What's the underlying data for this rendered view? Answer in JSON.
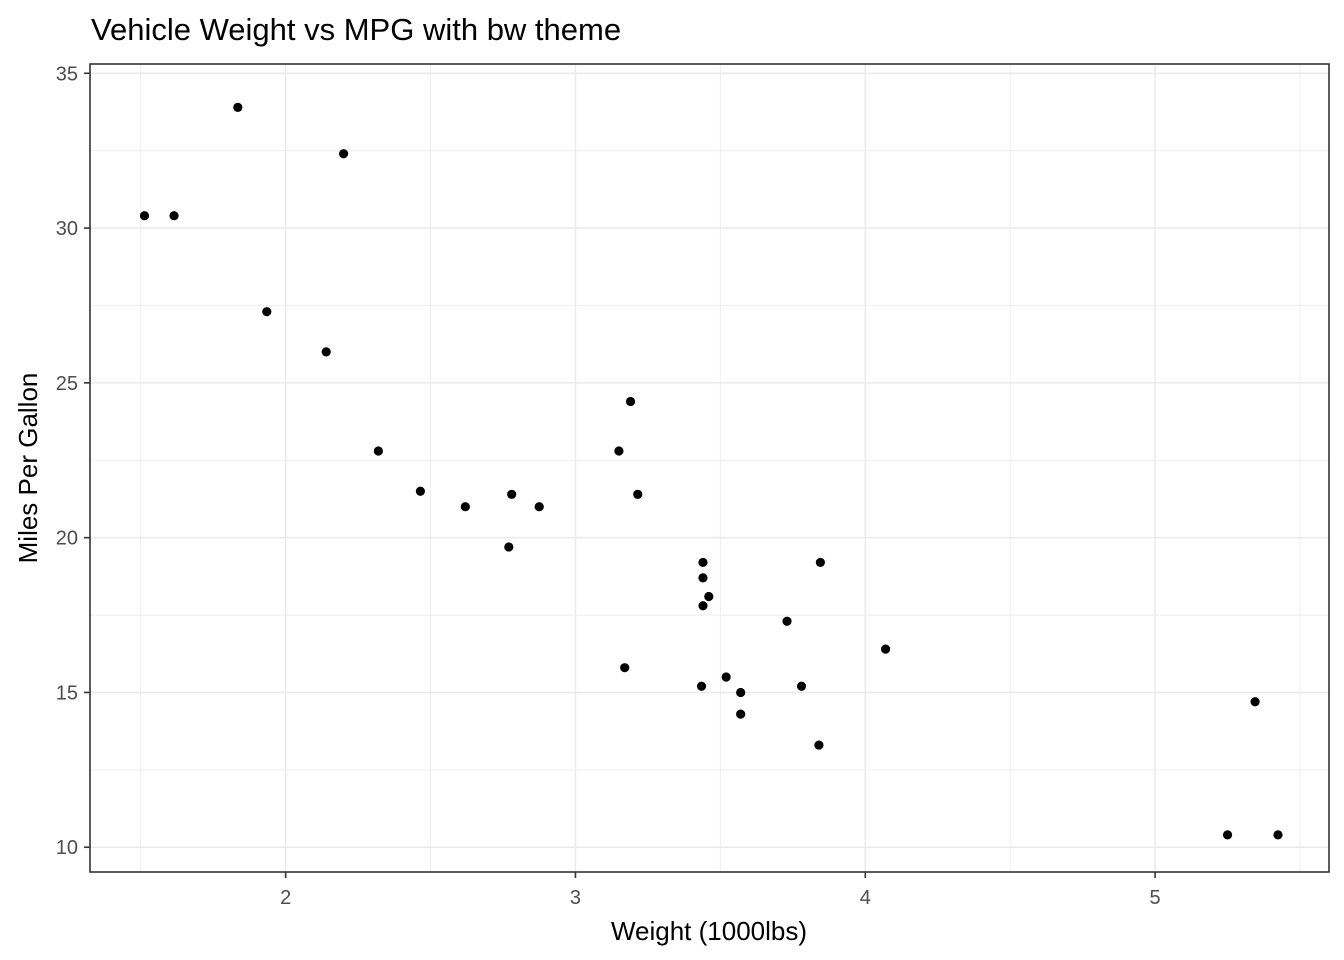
{
  "chart_data": {
    "type": "scatter",
    "title": "Vehicle Weight vs MPG with bw theme",
    "xlabel": "Weight (1000lbs)",
    "ylabel": "Miles Per Gallon",
    "xlim": [
      1.325,
      5.6
    ],
    "ylim": [
      9.2,
      35.3
    ],
    "x_ticks": [
      2,
      3,
      4,
      5
    ],
    "x_tick_labels": [
      "2",
      "3",
      "4",
      "5"
    ],
    "y_ticks": [
      10,
      15,
      20,
      25,
      30,
      35
    ],
    "y_tick_labels": [
      "10",
      "15",
      "20",
      "25",
      "30",
      "35"
    ],
    "grid": true,
    "theme": "bw",
    "point_color": "#000000",
    "grid_color": "#ebebeb",
    "panel_border_color": "#333333",
    "points": [
      {
        "x": 2.62,
        "y": 21.0
      },
      {
        "x": 2.875,
        "y": 21.0
      },
      {
        "x": 2.32,
        "y": 22.8
      },
      {
        "x": 3.215,
        "y": 21.4
      },
      {
        "x": 3.44,
        "y": 18.7
      },
      {
        "x": 3.46,
        "y": 18.1
      },
      {
        "x": 3.57,
        "y": 14.3
      },
      {
        "x": 3.19,
        "y": 24.4
      },
      {
        "x": 3.15,
        "y": 22.8
      },
      {
        "x": 3.44,
        "y": 19.2
      },
      {
        "x": 3.44,
        "y": 17.8
      },
      {
        "x": 4.07,
        "y": 16.4
      },
      {
        "x": 3.73,
        "y": 17.3
      },
      {
        "x": 3.78,
        "y": 15.2
      },
      {
        "x": 5.25,
        "y": 10.4
      },
      {
        "x": 5.424,
        "y": 10.4
      },
      {
        "x": 5.345,
        "y": 14.7
      },
      {
        "x": 2.2,
        "y": 32.4
      },
      {
        "x": 1.615,
        "y": 30.4
      },
      {
        "x": 1.835,
        "y": 33.9
      },
      {
        "x": 2.465,
        "y": 21.5
      },
      {
        "x": 3.52,
        "y": 15.5
      },
      {
        "x": 3.435,
        "y": 15.2
      },
      {
        "x": 3.84,
        "y": 13.3
      },
      {
        "x": 3.845,
        "y": 19.2
      },
      {
        "x": 1.935,
        "y": 27.3
      },
      {
        "x": 2.14,
        "y": 26.0
      },
      {
        "x": 1.513,
        "y": 30.4
      },
      {
        "x": 3.17,
        "y": 15.8
      },
      {
        "x": 2.77,
        "y": 19.7
      },
      {
        "x": 3.57,
        "y": 15.0
      },
      {
        "x": 2.78,
        "y": 21.4
      }
    ]
  }
}
